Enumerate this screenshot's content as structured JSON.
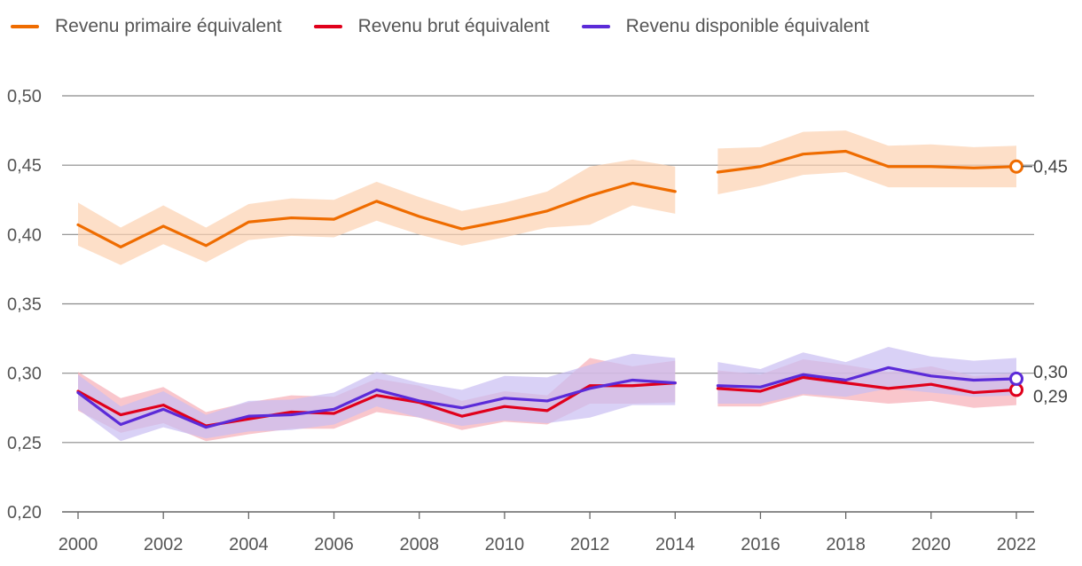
{
  "chart_data": {
    "type": "line",
    "title": "",
    "xlabel": "",
    "ylabel": "",
    "ylim": [
      0.2,
      0.5
    ],
    "xlim": [
      2000,
      2022
    ],
    "x": [
      2000,
      2001,
      2002,
      2003,
      2004,
      2005,
      2006,
      2007,
      2008,
      2009,
      2010,
      2011,
      2012,
      2013,
      2014,
      2015,
      2016,
      2017,
      2018,
      2019,
      2020,
      2021,
      2022
    ],
    "x_ticks": [
      "2000",
      "2002",
      "2004",
      "2006",
      "2008",
      "2010",
      "2012",
      "2014",
      "2016",
      "2018",
      "2020",
      "2022"
    ],
    "y_ticks": [
      "0,20",
      "0,25",
      "0,30",
      "0,35",
      "0,40",
      "0,45",
      "0,50"
    ],
    "legend_position": "top-left",
    "series": [
      {
        "name": "Revenu primaire équivalent",
        "color": "#ef6c00",
        "band_color": "#fcd2b0",
        "values": [
          0.407,
          0.391,
          0.406,
          0.392,
          0.409,
          0.412,
          0.411,
          0.424,
          0.413,
          0.404,
          0.41,
          0.417,
          0.428,
          0.437,
          0.431,
          0.445,
          0.449,
          0.458,
          0.46,
          0.449,
          0.449,
          0.448,
          0.449
        ],
        "lower": [
          0.392,
          0.378,
          0.393,
          0.38,
          0.396,
          0.399,
          0.398,
          0.41,
          0.4,
          0.392,
          0.398,
          0.405,
          0.407,
          0.421,
          0.415,
          0.429,
          0.435,
          0.443,
          0.445,
          0.434,
          0.434,
          0.434,
          0.434
        ],
        "upper": [
          0.423,
          0.405,
          0.421,
          0.405,
          0.422,
          0.426,
          0.425,
          0.438,
          0.427,
          0.417,
          0.423,
          0.431,
          0.449,
          0.454,
          0.449,
          0.462,
          0.463,
          0.474,
          0.475,
          0.464,
          0.465,
          0.463,
          0.464
        ],
        "end_label": "0,45"
      },
      {
        "name": "Revenu brut équivalent",
        "color": "#e0001b",
        "band_color": "#f6aeb6",
        "values": [
          0.287,
          0.27,
          0.277,
          0.262,
          0.267,
          0.272,
          0.271,
          0.284,
          0.279,
          0.269,
          0.276,
          0.273,
          0.291,
          0.291,
          0.293,
          0.289,
          0.287,
          0.297,
          0.293,
          0.289,
          0.292,
          0.286,
          0.288
        ],
        "lower": [
          0.273,
          0.257,
          0.264,
          0.251,
          0.256,
          0.26,
          0.26,
          0.272,
          0.268,
          0.259,
          0.265,
          0.263,
          0.278,
          0.278,
          0.279,
          0.276,
          0.276,
          0.284,
          0.281,
          0.278,
          0.28,
          0.275,
          0.277
        ],
        "upper": [
          0.301,
          0.282,
          0.29,
          0.272,
          0.279,
          0.284,
          0.283,
          0.296,
          0.291,
          0.28,
          0.287,
          0.284,
          0.311,
          0.305,
          0.309,
          0.302,
          0.299,
          0.31,
          0.306,
          0.301,
          0.305,
          0.298,
          0.3
        ],
        "end_label": "0,29"
      },
      {
        "name": "Revenu disponible équivalent",
        "color": "#5b2bd8",
        "band_color": "#c9bdf2",
        "values": [
          0.286,
          0.263,
          0.274,
          0.261,
          0.269,
          0.27,
          0.274,
          0.288,
          0.28,
          0.275,
          0.282,
          0.28,
          0.289,
          0.295,
          0.293,
          0.291,
          0.29,
          0.299,
          0.295,
          0.304,
          0.298,
          0.295,
          0.296
        ],
        "lower": [
          0.274,
          0.251,
          0.261,
          0.253,
          0.258,
          0.259,
          0.263,
          0.276,
          0.268,
          0.262,
          0.266,
          0.264,
          0.268,
          0.277,
          0.277,
          0.278,
          0.278,
          0.285,
          0.283,
          0.289,
          0.286,
          0.283,
          0.284
        ],
        "upper": [
          0.299,
          0.276,
          0.287,
          0.27,
          0.28,
          0.281,
          0.286,
          0.301,
          0.293,
          0.288,
          0.298,
          0.297,
          0.306,
          0.314,
          0.311,
          0.308,
          0.303,
          0.315,
          0.308,
          0.319,
          0.312,
          0.309,
          0.311
        ],
        "end_label": "0,30"
      }
    ],
    "gap_between": [
      2014,
      2015
    ]
  }
}
